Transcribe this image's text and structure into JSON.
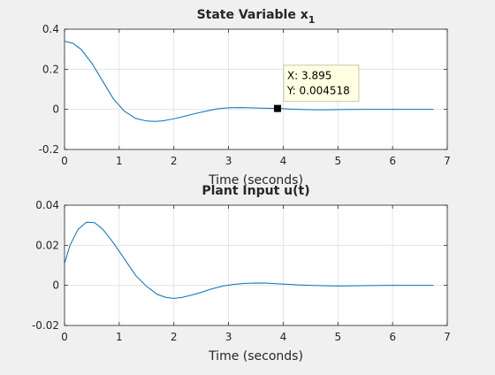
{
  "chart_data": [
    {
      "type": "line",
      "title": "State Variable x",
      "title_subscript": "1",
      "xlabel": "Time (seconds)",
      "ylabel": "",
      "xlim": [
        0,
        7
      ],
      "ylim": [
        -0.2,
        0.4
      ],
      "xticks": [
        0,
        1,
        2,
        3,
        4,
        5,
        6,
        7
      ],
      "yticks": [
        -0.2,
        0,
        0.2,
        0.4
      ],
      "xtick_labels": [
        "0",
        "1",
        "2",
        "3",
        "4",
        "5",
        "6",
        "7"
      ],
      "ytick_labels": [
        "-0.2",
        "0",
        "0.2",
        "0.4"
      ],
      "grid": true,
      "color": "#0072bd",
      "series": [
        {
          "x": [
            0,
            0.15,
            0.3,
            0.5,
            0.7,
            0.9,
            1.1,
            1.3,
            1.5,
            1.65,
            1.8,
            2.0,
            2.2,
            2.4,
            2.6,
            2.8,
            3.0,
            3.2,
            3.4,
            3.6,
            3.8,
            3.895,
            4.0,
            4.2,
            4.4,
            4.6,
            4.8,
            5.0,
            5.2,
            5.5,
            6.0,
            6.5,
            6.75
          ],
          "y": [
            0.34,
            0.33,
            0.3,
            0.23,
            0.14,
            0.05,
            -0.01,
            -0.045,
            -0.058,
            -0.06,
            -0.057,
            -0.047,
            -0.034,
            -0.02,
            -0.008,
            0.003,
            0.008,
            0.009,
            0.008,
            0.006,
            0.005,
            0.004518,
            0.0035,
            0.001,
            -0.001,
            -0.002,
            -0.0018,
            -0.001,
            -0.0005,
            0.0002,
            0.0003,
            0.0001,
            0
          ]
        }
      ],
      "datatip": {
        "x": 3.895,
        "y": 0.004518,
        "x_text": "X: 3.895",
        "y_text": "Y: 0.004518"
      }
    },
    {
      "type": "line",
      "title": "Plant Input u(t)",
      "xlabel": "Time (seconds)",
      "ylabel": "",
      "xlim": [
        0,
        7
      ],
      "ylim": [
        -0.02,
        0.04
      ],
      "xticks": [
        0,
        1,
        2,
        3,
        4,
        5,
        6,
        7
      ],
      "yticks": [
        -0.02,
        0,
        0.02,
        0.04
      ],
      "xtick_labels": [
        "0",
        "1",
        "2",
        "3",
        "4",
        "5",
        "6",
        "7"
      ],
      "ytick_labels": [
        "-0.02",
        "0",
        "0.02",
        "0.04"
      ],
      "grid": true,
      "color": "#0072bd",
      "series": [
        {
          "x": [
            0,
            0.1,
            0.25,
            0.4,
            0.55,
            0.7,
            0.9,
            1.1,
            1.3,
            1.5,
            1.7,
            1.85,
            2.0,
            2.15,
            2.3,
            2.5,
            2.7,
            2.9,
            3.1,
            3.3,
            3.5,
            3.7,
            3.9,
            4.1,
            4.3,
            4.5,
            4.8,
            5.0,
            5.3,
            5.6,
            6.0,
            6.5,
            6.75
          ],
          "y": [
            0.011,
            0.02,
            0.028,
            0.0315,
            0.0313,
            0.028,
            0.021,
            0.013,
            0.005,
            -0.0005,
            -0.0045,
            -0.006,
            -0.0065,
            -0.006,
            -0.005,
            -0.0035,
            -0.0017,
            -0.0003,
            0.0005,
            0.001,
            0.0012,
            0.0011,
            0.0008,
            0.0005,
            0.0002,
            0,
            -0.0002,
            -0.0003,
            -0.0002,
            -0.0001,
            0,
            0,
            0
          ]
        }
      ]
    }
  ]
}
